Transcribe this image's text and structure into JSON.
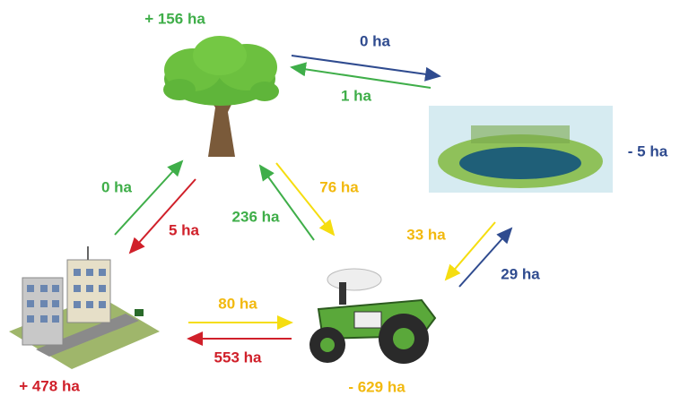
{
  "nodes": [
    {
      "label": "+ 156 ha"
    },
    {
      "label": "- 5 ha"
    },
    {
      "label": "+ 478 ha"
    },
    {
      "label": "- 629 ha"
    }
  ],
  "flows": [
    {
      "label": "0 ha"
    },
    {
      "label": "1 ha"
    },
    {
      "label": "0 ha"
    },
    {
      "label": "5 ha"
    },
    {
      "label": "76 ha"
    },
    {
      "label": "236 ha"
    },
    {
      "label": "33 ha"
    },
    {
      "label": "29 ha"
    },
    {
      "label": "80 ha"
    },
    {
      "label": "553 ha"
    }
  ]
}
